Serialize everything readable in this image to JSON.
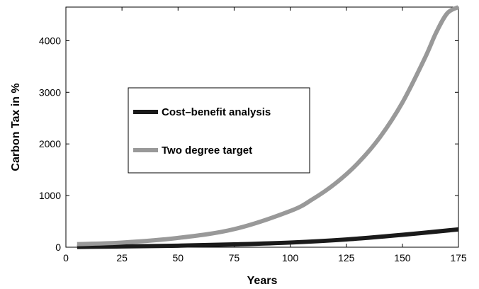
{
  "chart_data": {
    "type": "line",
    "xlabel": "Years",
    "ylabel": "Carbon Tax in %",
    "xlim": [
      0,
      175
    ],
    "ylim": [
      0,
      4650
    ],
    "xticks": [
      0,
      25,
      50,
      75,
      100,
      125,
      150,
      175
    ],
    "yticks": [
      0,
      1000,
      2000,
      3000,
      4000
    ],
    "grid": false,
    "legend_position": "center-left",
    "series": [
      {
        "name": "Cost–benefit analysis",
        "color": "#1a1a1a",
        "x": [
          5,
          25,
          50,
          75,
          100,
          125,
          150,
          175
        ],
        "y": [
          5,
          15,
          30,
          55,
          90,
          150,
          240,
          345
        ]
      },
      {
        "name": "Two degree target",
        "color": "#999999",
        "x": [
          5,
          25,
          50,
          75,
          100,
          110,
          120,
          130,
          140,
          150,
          160,
          165,
          170,
          175
        ],
        "y": [
          60,
          90,
          180,
          350,
          700,
          930,
          1230,
          1620,
          2130,
          2800,
          3660,
          4150,
          4530,
          4650
        ]
      }
    ]
  }
}
